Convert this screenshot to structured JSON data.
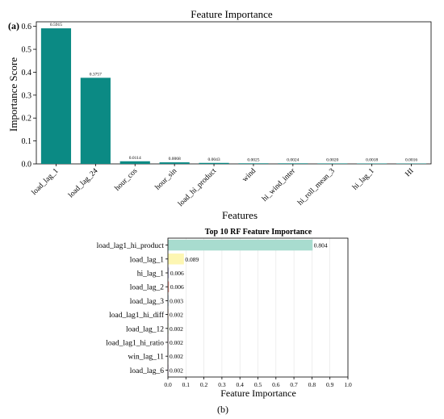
{
  "panel_a_label": "(a)",
  "panel_b_label": "(b)",
  "chart_data": [
    {
      "type": "bar",
      "title": "Feature Importance",
      "xlabel": "Features",
      "ylabel": "Importance Score",
      "categories": [
        "load_lag_1",
        "load_lag_24",
        "hour_cos",
        "hour_sin",
        "load_hi_product",
        "wind",
        "hi_wind_inter",
        "hi_roll_mean_3",
        "hi_lag_1",
        "HI"
      ],
      "values": [
        0.5915,
        0.3757,
        0.0114,
        0.0068,
        0.0043,
        0.0025,
        0.0024,
        0.002,
        0.0018,
        0.0016
      ],
      "data_labels": [
        "0.5915",
        "0.3757",
        "0.0114",
        "0.0068",
        "0.0043",
        "0.0025",
        "0.0024",
        "0.0020",
        "0.0018",
        "0.0016"
      ],
      "ylim": [
        0,
        0.62
      ],
      "yticks": [
        0.0,
        0.1,
        0.2,
        0.3,
        0.4,
        0.5,
        0.6
      ],
      "ytick_labels": [
        "0.0",
        "0.1",
        "0.2",
        "0.3",
        "0.4",
        "0.5",
        "0.6"
      ],
      "bar_color": "#0b8a84",
      "grid": false
    },
    {
      "type": "bar",
      "orientation": "horizontal",
      "title": "Top 10 RF Feature Importance",
      "xlabel": "Feature Importance",
      "categories": [
        "load_lag1_hi_product",
        "load_lag_1",
        "hi_lag_1",
        "load_lag_2",
        "load_lag_3",
        "load_lag1_hi_diff",
        "load_lag_12",
        "load_lag1_hi_ratio",
        "win_lag_11",
        "load_lag_6"
      ],
      "values": [
        0.804,
        0.089,
        0.006,
        0.006,
        0.003,
        0.002,
        0.002,
        0.002,
        0.002,
        0.002
      ],
      "data_labels": [
        "0.804",
        "0.089",
        "0.006",
        "0.006",
        "0.003",
        "0.002",
        "0.002",
        "0.002",
        "0.002",
        "0.002"
      ],
      "xlim": [
        0,
        1.0
      ],
      "xticks": [
        0.0,
        0.1,
        0.2,
        0.3,
        0.4,
        0.5,
        0.6,
        0.7,
        0.8,
        0.9,
        1.0
      ],
      "xtick_labels": [
        "0.0",
        "0.1",
        "0.2",
        "0.3",
        "0.4",
        "0.5",
        "0.6",
        "0.7",
        "0.8",
        "0.9",
        "1.0"
      ],
      "bar_colors": [
        "#a8dccf",
        "#fdf6b2",
        "#c9c5e4",
        "#f4a29a",
        "#a4c3dd",
        "#f7c48f",
        "#c5e4a0",
        "#f5d0e3",
        "#d9d9d9",
        "#c39bc6"
      ],
      "grid": true
    }
  ]
}
